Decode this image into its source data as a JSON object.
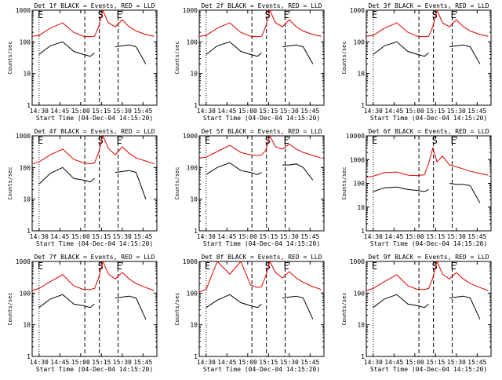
{
  "figure": {
    "ylabel": "Counts/sec",
    "xlabel": "Start Time (04-Dec-04 14:15:20)",
    "x_ticks": [
      "14:30",
      "14:45",
      "15:00",
      "15:15",
      "15:30",
      "15:45"
    ],
    "y_ticks": [
      "1",
      "10",
      "100",
      "1000"
    ],
    "y_ticks_det6": [
      "1",
      "10",
      "100",
      "1000",
      "10000"
    ],
    "colors": {
      "events": "#000000",
      "lld": "#dd0000",
      "markers": "#000000"
    }
  },
  "chart_data": [
    {
      "type": "line",
      "title": "Det 1f BLACK = Events, RED = LLD",
      "markers": [
        {
          "label": "E"
        },
        {
          "label": "S"
        },
        {
          "label": "E"
        }
      ],
      "ylim": [
        1,
        1000
      ],
      "yscale": "log",
      "x": [
        "14:25",
        "14:30",
        "14:38",
        "14:47",
        "14:55",
        "15:02",
        "15:07",
        "15:10",
        "15:13",
        "15:16",
        "15:20",
        "15:25",
        "15:30",
        "15:35",
        "15:40",
        "15:47",
        "15:53"
      ],
      "series": [
        {
          "name": "LLD",
          "values": [
            150,
            160,
            270,
            400,
            200,
            150,
            145,
            150,
            300,
            1000,
            400,
            300,
            500,
            300,
            220,
            170,
            150
          ]
        },
        {
          "name": "Events",
          "values": [
            null,
            40,
            75,
            100,
            50,
            40,
            35,
            45,
            null,
            null,
            null,
            70,
            75,
            80,
            70,
            20,
            null
          ]
        }
      ]
    },
    {
      "type": "line",
      "title": "Det 2f BLACK = Events, RED = LLD",
      "markers": [
        {
          "label": "S"
        },
        {
          "label": "E"
        }
      ],
      "ylim": [
        1,
        1000
      ],
      "yscale": "log",
      "x": [
        "14:25",
        "14:30",
        "14:38",
        "14:47",
        "14:55",
        "15:02",
        "15:07",
        "15:10",
        "15:13",
        "15:16",
        "15:20",
        "15:25",
        "15:30",
        "15:35",
        "15:40",
        "15:47",
        "15:53"
      ],
      "series": [
        {
          "name": "LLD",
          "values": [
            150,
            160,
            270,
            400,
            200,
            150,
            145,
            150,
            300,
            1000,
            400,
            300,
            500,
            300,
            220,
            170,
            150
          ]
        },
        {
          "name": "Events",
          "values": [
            null,
            40,
            75,
            100,
            50,
            40,
            35,
            45,
            null,
            null,
            null,
            70,
            75,
            80,
            70,
            20,
            null
          ]
        }
      ]
    },
    {
      "type": "line",
      "title": "Det 3f BLACK = Events, RED = LLD",
      "markers": [
        {
          "label": "E"
        },
        {
          "label": "S"
        },
        {
          "label": "E"
        }
      ],
      "ylim": [
        1,
        1000
      ],
      "yscale": "log",
      "x": [
        "14:25",
        "14:30",
        "14:38",
        "14:47",
        "14:55",
        "15:02",
        "15:07",
        "15:10",
        "15:13",
        "15:16",
        "15:20",
        "15:25",
        "15:30",
        "15:35",
        "15:40",
        "15:47",
        "15:53"
      ],
      "series": [
        {
          "name": "LLD",
          "values": [
            150,
            160,
            270,
            400,
            200,
            150,
            145,
            150,
            300,
            1000,
            400,
            300,
            500,
            300,
            220,
            170,
            150
          ]
        },
        {
          "name": "Events",
          "values": [
            null,
            40,
            75,
            100,
            50,
            40,
            35,
            45,
            null,
            null,
            null,
            70,
            75,
            80,
            70,
            20,
            null
          ]
        }
      ]
    },
    {
      "type": "line",
      "title": "Det 4f BLACK = Events, RED = LLD",
      "markers": [
        {
          "label": "E"
        },
        {
          "label": "S"
        },
        {
          "label": "E"
        }
      ],
      "ylim": [
        1,
        1000
      ],
      "yscale": "log",
      "x": [
        "14:25",
        "14:30",
        "14:38",
        "14:47",
        "14:55",
        "15:02",
        "15:07",
        "15:10",
        "15:13",
        "15:16",
        "15:20",
        "15:25",
        "15:30",
        "15:35",
        "15:40",
        "15:47",
        "15:53"
      ],
      "series": [
        {
          "name": "LLD",
          "values": [
            130,
            150,
            250,
            380,
            180,
            140,
            130,
            140,
            300,
            1000,
            400,
            250,
            450,
            280,
            200,
            160,
            130
          ]
        },
        {
          "name": "Events",
          "values": [
            null,
            30,
            65,
            100,
            45,
            40,
            35,
            45,
            null,
            null,
            null,
            70,
            75,
            80,
            70,
            10,
            null
          ]
        }
      ]
    },
    {
      "type": "line",
      "title": "Det 5f BLACK = Events, RED = LLD",
      "markers": [
        {
          "label": "E"
        },
        {
          "label": "S"
        },
        {
          "label": "E"
        }
      ],
      "ylim": [
        1,
        1000
      ],
      "yscale": "log",
      "x": [
        "14:25",
        "14:30",
        "14:38",
        "14:47",
        "14:55",
        "15:02",
        "15:07",
        "15:10",
        "15:13",
        "15:16",
        "15:20",
        "15:25",
        "15:30",
        "15:35",
        "15:40",
        "15:47",
        "15:53"
      ],
      "series": [
        {
          "name": "LLD",
          "values": [
            200,
            210,
            320,
            500,
            300,
            250,
            240,
            250,
            350,
            1000,
            450,
            380,
            550,
            380,
            300,
            240,
            200
          ]
        },
        {
          "name": "Events",
          "values": [
            null,
            60,
            100,
            140,
            80,
            70,
            60,
            70,
            null,
            null,
            null,
            120,
            120,
            130,
            100,
            40,
            null
          ]
        }
      ]
    },
    {
      "type": "line",
      "title": "Det 6f BLACK = Events, RED = LLD",
      "markers": [
        {
          "label": "E"
        },
        {
          "label": "S"
        },
        {
          "label": "E"
        }
      ],
      "ylim": [
        1,
        10000
      ],
      "yscale": "log",
      "x": [
        "14:25",
        "14:30",
        "14:38",
        "14:47",
        "14:55",
        "15:02",
        "15:07",
        "15:10",
        "15:13",
        "15:16",
        "15:20",
        "15:25",
        "15:30",
        "15:35",
        "15:40",
        "15:47",
        "15:53"
      ],
      "series": [
        {
          "name": "LLD",
          "values": [
            180,
            200,
            280,
            300,
            220,
            210,
            230,
            700,
            3000,
            800,
            1400,
            600,
            500,
            400,
            320,
            260,
            220
          ]
        },
        {
          "name": "Events",
          "values": [
            null,
            45,
            65,
            70,
            55,
            50,
            45,
            55,
            null,
            null,
            null,
            100,
            90,
            90,
            80,
            15,
            null
          ]
        }
      ]
    },
    {
      "type": "line",
      "title": "Det 7f BLACK = Events, RED = LLD",
      "markers": [
        {
          "label": "E"
        },
        {
          "label": "S"
        },
        {
          "label": "E"
        }
      ],
      "ylim": [
        1,
        1000
      ],
      "yscale": "log",
      "x": [
        "14:25",
        "14:30",
        "14:38",
        "14:47",
        "14:55",
        "15:02",
        "15:07",
        "15:10",
        "15:13",
        "15:16",
        "15:20",
        "15:25",
        "15:30",
        "15:35",
        "15:40",
        "15:47",
        "15:53"
      ],
      "series": [
        {
          "name": "LLD",
          "values": [
            120,
            140,
            230,
            380,
            170,
            130,
            130,
            140,
            300,
            1000,
            400,
            280,
            450,
            280,
            200,
            150,
            120
          ]
        },
        {
          "name": "Events",
          "values": [
            null,
            35,
            65,
            90,
            45,
            40,
            35,
            45,
            null,
            null,
            null,
            70,
            75,
            80,
            70,
            15,
            null
          ]
        }
      ]
    },
    {
      "type": "line",
      "title": "Det 8f BLACK = Events, RED = LLD",
      "markers": [
        {
          "label": "E"
        },
        {
          "label": "S"
        },
        {
          "label": "E"
        }
      ],
      "ylim": [
        1,
        1000
      ],
      "yscale": "log",
      "x": [
        "14:25",
        "14:30",
        "14:38",
        "14:47",
        "14:55",
        "15:02",
        "15:07",
        "15:10",
        "15:13",
        "15:16",
        "15:20",
        "15:25",
        "15:30",
        "15:35",
        "15:40",
        "15:47",
        "15:53"
      ],
      "series": [
        {
          "name": "LLD",
          "values": [
            110,
            130,
            1000,
            400,
            1000,
            180,
            150,
            160,
            350,
            1000,
            450,
            300,
            480,
            300,
            220,
            160,
            130
          ]
        },
        {
          "name": "Events",
          "values": [
            null,
            35,
            60,
            90,
            50,
            40,
            35,
            45,
            null,
            null,
            null,
            70,
            75,
            80,
            70,
            15,
            null
          ]
        }
      ]
    },
    {
      "type": "line",
      "title": "Det 9f BLACK = Events, RED = LLD",
      "markers": [
        {
          "label": "E"
        },
        {
          "label": "S"
        },
        {
          "label": "E"
        }
      ],
      "ylim": [
        1,
        1000
      ],
      "yscale": "log",
      "x": [
        "14:25",
        "14:30",
        "14:38",
        "14:47",
        "14:55",
        "15:02",
        "15:07",
        "15:10",
        "15:13",
        "15:16",
        "15:20",
        "15:25",
        "15:30",
        "15:35",
        "15:40",
        "15:47",
        "15:53"
      ],
      "series": [
        {
          "name": "LLD",
          "values": [
            120,
            140,
            230,
            380,
            170,
            130,
            130,
            140,
            300,
            1000,
            400,
            280,
            450,
            280,
            200,
            150,
            120
          ]
        },
        {
          "name": "Events",
          "values": [
            null,
            35,
            65,
            90,
            45,
            40,
            35,
            45,
            null,
            null,
            null,
            70,
            75,
            80,
            70,
            15,
            null
          ]
        }
      ]
    }
  ]
}
